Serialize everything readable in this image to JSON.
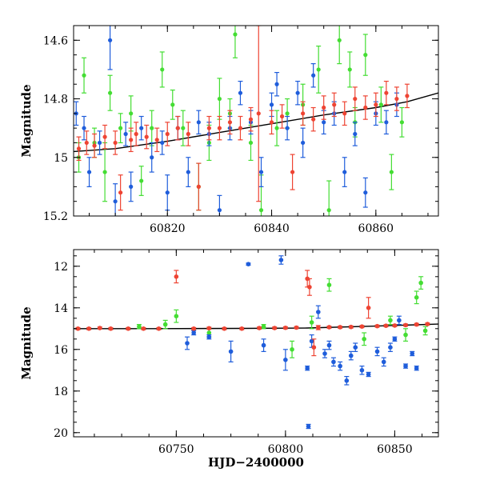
{
  "colors": {
    "green": "#44dd33",
    "blue": "#1f5ddb",
    "red": "#ee4433",
    "model": "#000000"
  },
  "chart_data": [
    {
      "type": "scatter",
      "title": "",
      "xlabel": "",
      "ylabel": "Magnitude",
      "xlim": [
        60802,
        60872
      ],
      "ylim": [
        14.55,
        15.2
      ],
      "y_inverted": true,
      "grid": false,
      "xticks": [
        60820,
        60840,
        60860
      ],
      "xtick_labels": [
        "60820",
        "60840",
        "60860"
      ],
      "yticks": [
        14.6,
        14.8,
        15.0,
        15.2
      ],
      "ytick_labels": [
        "14.6",
        "14.8",
        "15",
        "15.2"
      ],
      "model_curve": {
        "x": [
          60802,
          60810,
          60820,
          60830,
          60840,
          60850,
          60860,
          60866,
          60872
        ],
        "y": [
          14.98,
          14.97,
          14.945,
          14.915,
          14.885,
          14.855,
          14.83,
          14.81,
          14.78
        ]
      },
      "series": [
        {
          "color": "green",
          "x": [
            60803,
            60804,
            60806,
            60808,
            60809,
            60811,
            60813,
            60815,
            60817,
            60819,
            60821,
            60823,
            60826,
            60828,
            60830,
            60832,
            60833,
            60836,
            60838,
            60841,
            60843,
            60846,
            60849,
            60851,
            60853,
            60855,
            60856,
            60858,
            60861,
            60863,
            60865
          ],
          "y": [
            15.0,
            14.72,
            14.95,
            15.05,
            14.78,
            14.9,
            14.85,
            15.08,
            14.9,
            14.7,
            14.82,
            14.9,
            15.1,
            14.95,
            14.8,
            14.85,
            14.58,
            14.95,
            15.18,
            14.9,
            14.85,
            14.82,
            14.7,
            15.18,
            14.6,
            14.7,
            14.88,
            14.65,
            14.82,
            15.05,
            14.88
          ],
          "err": [
            0.05,
            0.06,
            0.05,
            0.1,
            0.06,
            0.05,
            0.06,
            0.05,
            0.06,
            0.06,
            0.05,
            0.06,
            0.08,
            0.06,
            0.07,
            0.05,
            0.08,
            0.06,
            0.12,
            0.06,
            0.05,
            0.07,
            0.08,
            0.1,
            0.08,
            0.06,
            0.05,
            0.07,
            0.06,
            0.06,
            0.05
          ]
        },
        {
          "color": "blue",
          "x": [
            60802.5,
            60804,
            60805,
            60807,
            60809,
            60810,
            60812,
            60813,
            60815,
            60817,
            60819,
            60820,
            60822,
            60824,
            60826,
            60828,
            60830,
            60832,
            60834,
            60836,
            60838,
            60840,
            60841,
            60843,
            60845,
            60846,
            60848,
            60850,
            60852,
            60854,
            60856,
            60858,
            60860,
            60862,
            60864
          ],
          "y": [
            14.85,
            14.9,
            15.05,
            14.95,
            14.6,
            15.15,
            14.92,
            15.1,
            14.9,
            15.0,
            14.95,
            15.12,
            14.9,
            15.05,
            14.88,
            14.92,
            15.18,
            14.9,
            14.78,
            14.88,
            15.05,
            14.82,
            14.75,
            14.9,
            14.78,
            14.95,
            14.72,
            14.88,
            14.85,
            15.05,
            14.92,
            15.12,
            14.85,
            14.88,
            14.82
          ],
          "err": [
            0.04,
            0.04,
            0.05,
            0.04,
            0.1,
            0.06,
            0.04,
            0.05,
            0.04,
            0.05,
            0.04,
            0.06,
            0.04,
            0.05,
            0.04,
            0.04,
            0.05,
            0.04,
            0.04,
            0.04,
            0.05,
            0.04,
            0.04,
            0.04,
            0.04,
            0.05,
            0.04,
            0.04,
            0.04,
            0.05,
            0.04,
            0.05,
            0.04,
            0.04,
            0.04
          ]
        },
        {
          "color": "red",
          "x": [
            60803,
            60804.5,
            60806,
            60808,
            60810,
            60811,
            60813,
            60814,
            60816,
            60818,
            60820,
            60822,
            60824,
            60826,
            60828,
            60830,
            60832,
            60834,
            60836,
            60837.5,
            60840,
            60842,
            60844,
            60846,
            60848,
            60850,
            60852,
            60854,
            60856,
            60858,
            60860,
            60862,
            60864,
            60866
          ],
          "y": [
            14.97,
            14.95,
            14.96,
            14.93,
            14.95,
            15.12,
            14.94,
            14.92,
            14.93,
            14.94,
            14.92,
            14.9,
            14.92,
            15.1,
            14.9,
            14.9,
            14.88,
            14.9,
            14.87,
            14.85,
            14.88,
            14.86,
            15.05,
            14.85,
            14.87,
            14.83,
            14.82,
            14.85,
            14.8,
            14.83,
            14.82,
            14.78,
            14.8,
            14.79
          ],
          "err": [
            0.04,
            0.04,
            0.04,
            0.04,
            0.04,
            0.06,
            0.04,
            0.04,
            0.04,
            0.04,
            0.04,
            0.04,
            0.04,
            0.08,
            0.04,
            0.04,
            0.04,
            0.04,
            0.04,
            0.3,
            0.04,
            0.04,
            0.06,
            0.04,
            0.04,
            0.04,
            0.04,
            0.04,
            0.04,
            0.04,
            0.04,
            0.04,
            0.04,
            0.04
          ]
        }
      ]
    },
    {
      "type": "scatter",
      "title": "",
      "xlabel": "HJD−2400000",
      "ylabel": "Magnitude",
      "xlim": [
        60703,
        60870
      ],
      "ylim": [
        11.2,
        20.2
      ],
      "y_inverted": true,
      "grid": false,
      "xticks": [
        60750,
        60800,
        60850
      ],
      "xtick_labels": [
        "60750",
        "60800",
        "60850"
      ],
      "yticks": [
        12,
        14,
        16,
        18,
        20
      ],
      "ytick_labels": [
        "12",
        "14",
        "16",
        "18",
        "20"
      ],
      "model_curve": {
        "x": [
          60703,
          60740,
          60780,
          60810,
          60840,
          60870
        ],
        "y": [
          15.0,
          15.0,
          14.99,
          14.97,
          14.88,
          14.78
        ]
      },
      "series": [
        {
          "color": "green",
          "x": [
            60733,
            60745,
            60750,
            60765,
            60790,
            60803,
            60812,
            60820,
            60836,
            60848,
            60855,
            60860,
            60862,
            60864
          ],
          "y": [
            14.9,
            14.8,
            14.4,
            15.2,
            14.9,
            16.0,
            14.7,
            12.9,
            15.5,
            14.6,
            15.3,
            13.5,
            12.8,
            15.1
          ],
          "err": [
            0.1,
            0.2,
            0.3,
            0.2,
            0.1,
            0.4,
            0.3,
            0.3,
            0.3,
            0.2,
            0.3,
            0.3,
            0.3,
            0.2
          ]
        },
        {
          "color": "blue",
          "x": [
            60755,
            60758,
            60765,
            60775,
            60783,
            60790,
            60798,
            60800,
            60810,
            60812,
            60815,
            60818,
            60820,
            60822,
            60825,
            60828,
            60830,
            60832,
            60835,
            60838,
            60842,
            60845,
            60848,
            60850,
            60852,
            60855,
            60858,
            60860,
            60810.5
          ],
          "y": [
            15.7,
            15.2,
            15.4,
            16.1,
            11.9,
            15.8,
            11.7,
            16.5,
            16.9,
            15.6,
            14.2,
            16.2,
            15.8,
            16.6,
            16.8,
            17.5,
            16.3,
            15.9,
            17.0,
            17.2,
            16.1,
            16.6,
            15.9,
            15.5,
            14.6,
            16.8,
            16.2,
            16.9,
            19.7
          ],
          "err": [
            0.3,
            0.1,
            0.1,
            0.5,
            0.05,
            0.3,
            0.2,
            0.5,
            0.1,
            0.3,
            0.3,
            0.2,
            0.2,
            0.2,
            0.2,
            0.2,
            0.2,
            0.2,
            0.2,
            0.1,
            0.2,
            0.2,
            0.2,
            0.1,
            0.2,
            0.1,
            0.1,
            0.1,
            0.1
          ]
        },
        {
          "color": "red",
          "x": [
            60705,
            60710,
            60715,
            60720,
            60728,
            60735,
            60742,
            60750,
            60758,
            60765,
            60772,
            60780,
            60788,
            60795,
            60800,
            60805,
            60810,
            60811,
            60813,
            60815,
            60820,
            60825,
            60830,
            60835,
            60838,
            60842,
            60846,
            60850,
            60855,
            60860,
            60865
          ],
          "y": [
            15.0,
            15.0,
            14.97,
            15.0,
            15.0,
            15.0,
            15.0,
            12.5,
            15.0,
            14.98,
            15.0,
            15.0,
            14.97,
            14.97,
            14.96,
            14.95,
            12.6,
            13.0,
            15.9,
            14.95,
            14.93,
            14.93,
            14.92,
            14.9,
            14.0,
            14.88,
            14.86,
            14.85,
            14.83,
            14.8,
            14.78
          ],
          "err": [
            0.05,
            0.05,
            0.05,
            0.05,
            0.05,
            0.05,
            0.05,
            0.3,
            0.05,
            0.05,
            0.05,
            0.05,
            0.05,
            0.05,
            0.05,
            0.05,
            0.4,
            0.4,
            0.4,
            0.1,
            0.05,
            0.05,
            0.05,
            0.05,
            0.5,
            0.05,
            0.05,
            0.05,
            0.05,
            0.05,
            0.05
          ]
        }
      ]
    }
  ]
}
